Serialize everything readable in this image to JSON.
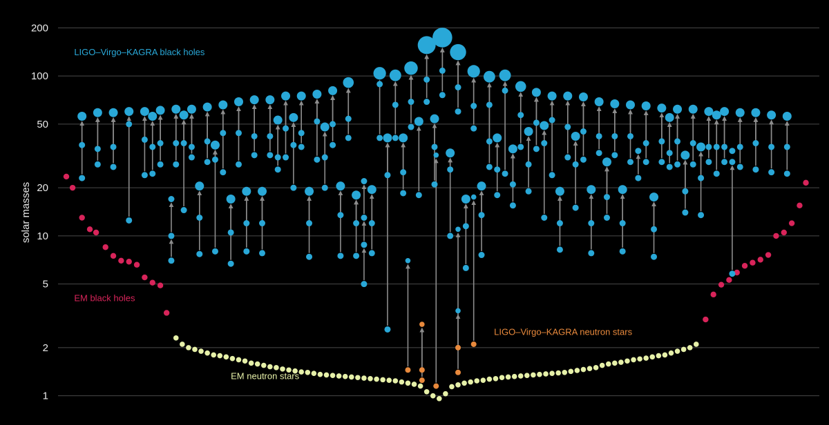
{
  "chart_data": {
    "type": "scatter",
    "title": "",
    "xlabel": "",
    "ylabel": "solar masses",
    "yscale": "log",
    "ylim": [
      0.85,
      260
    ],
    "xlim": [
      0,
      47
    ],
    "y_ticks": [
      1,
      2,
      5,
      10,
      20,
      50,
      100,
      200
    ],
    "y_tick_labels": [
      "1",
      "2",
      "5",
      "10",
      "20",
      "50",
      "100",
      "200"
    ],
    "grid": "horizontal",
    "colors": {
      "ligo_bh": "#29a8d8",
      "ligo_ns": "#e8893c",
      "em_bh": "#d8245a",
      "em_ns": "#e6f0a8",
      "arrow": "#8c8c8c",
      "grid": "#4a4a4a"
    },
    "annotations": [
      {
        "text": "LIGO–Virgo–KAGRA black holes",
        "series": "ligo_bh",
        "at_x": 0.5,
        "at_y": 135
      },
      {
        "text": "EM black holes",
        "series": "em_bh",
        "at_x": 0.5,
        "at_y": 3.9
      },
      {
        "text": "LIGO–Virgo–KAGRA neutron stars",
        "series": "ligo_ns",
        "at_x": 27.3,
        "at_y": 2.4
      },
      {
        "text": "EM neutron stars",
        "series": "em_ns",
        "at_x": 10.5,
        "at_y": 1.27
      }
    ],
    "mergers": [
      {
        "x": 1,
        "p": [
          37,
          23
        ],
        "r": 56,
        "size": 1
      },
      {
        "x": 2,
        "p": [
          35,
          28
        ],
        "r": 59,
        "size": 1
      },
      {
        "x": 3,
        "p": [
          36,
          27
        ],
        "r": 59,
        "size": 1
      },
      {
        "x": 4,
        "p": [
          50,
          12.5
        ],
        "r": 60,
        "size": 1
      },
      {
        "x": 5,
        "p": [
          40,
          24
        ],
        "r": 60,
        "size": 1
      },
      {
        "x": 5.5,
        "p": [
          36,
          24.5
        ],
        "r": 56,
        "size": 1
      },
      {
        "x": 6,
        "p": [
          38,
          28
        ],
        "r": 61,
        "size": 1
      },
      {
        "x": 6.7,
        "p": [
          17,
          10,
          7
        ],
        "r": 0,
        "size": 1
      },
      {
        "x": 7,
        "p": [
          38,
          28
        ],
        "r": 62,
        "size": 1
      },
      {
        "x": 7.5,
        "p": [
          38,
          14.5
        ],
        "r": 57,
        "size": 1
      },
      {
        "x": 8,
        "p": [
          36,
          31
        ],
        "r": 62,
        "size": 1
      },
      {
        "x": 8.5,
        "p": [
          13,
          7.7
        ],
        "r": 20.5,
        "size": 1
      },
      {
        "x": 9,
        "p": [
          39,
          29
        ],
        "r": 64,
        "size": 1
      },
      {
        "x": 9.5,
        "p": [
          30,
          8
        ],
        "r": 37,
        "size": 1
      },
      {
        "x": 10,
        "p": [
          44,
          25
        ],
        "r": 66,
        "size": 1
      },
      {
        "x": 10.5,
        "p": [
          10.5,
          6.7
        ],
        "r": 17,
        "size": 1
      },
      {
        "x": 11,
        "p": [
          44,
          28
        ],
        "r": 69,
        "size": 1
      },
      {
        "x": 11.5,
        "p": [
          12,
          8
        ],
        "r": 19,
        "size": 1
      },
      {
        "x": 12,
        "p": [
          42,
          32
        ],
        "r": 71,
        "size": 1
      },
      {
        "x": 12.5,
        "p": [
          12,
          7.8
        ],
        "r": 19,
        "size": 1
      },
      {
        "x": 13,
        "p": [
          42,
          32
        ],
        "r": 71,
        "size": 1
      },
      {
        "x": 13.5,
        "p": [
          31,
          26
        ],
        "r": 53,
        "size": 1
      },
      {
        "x": 14,
        "p": [
          47,
          31
        ],
        "r": 75,
        "size": 1
      },
      {
        "x": 14.5,
        "p": [
          37,
          20
        ],
        "r": 55,
        "size": 1
      },
      {
        "x": 15,
        "p": [
          44,
          36
        ],
        "r": 75,
        "size": 1
      },
      {
        "x": 15.5,
        "p": [
          12,
          7.4
        ],
        "r": 19,
        "size": 1
      },
      {
        "x": 16,
        "p": [
          52,
          30
        ],
        "r": 77,
        "size": 1
      },
      {
        "x": 16.5,
        "p": [
          31,
          20
        ],
        "r": 48,
        "size": 1
      },
      {
        "x": 17,
        "p": [
          50,
          37
        ],
        "r": 81,
        "size": 1
      },
      {
        "x": 17.5,
        "p": [
          13.5,
          7.5
        ],
        "r": 20.5,
        "size": 1
      },
      {
        "x": 18,
        "p": [
          54,
          41
        ],
        "r": 91,
        "size": 1.2
      },
      {
        "x": 18.5,
        "p": [
          12,
          7.5
        ],
        "r": 18,
        "size": 1
      },
      {
        "x": 19,
        "p": [
          22,
          13,
          8.8,
          5
        ],
        "r": 0,
        "size": 1
      },
      {
        "x": 19.5,
        "p": [
          12,
          7.8
        ],
        "r": 19.5,
        "size": 1
      },
      {
        "x": 20,
        "p": [
          89,
          41
        ],
        "r": 104,
        "size": 1.4
      },
      {
        "x": 20.5,
        "p": [
          24,
          2.6
        ],
        "r": 41,
        "size": 1
      },
      {
        "x": 21,
        "p": [
          66,
          41
        ],
        "r": 101,
        "size": 1.3
      },
      {
        "x": 21.5,
        "p": [
          25,
          18.5
        ],
        "r": 41,
        "size": 1
      },
      {
        "x": 22,
        "p": [
          69,
          48
        ],
        "r": 112,
        "size": 1.5
      },
      {
        "x": 22.5,
        "p": [
          18
        ],
        "r": 52,
        "size": 1
      },
      {
        "x": 23,
        "p": [
          95,
          69
        ],
        "r": 156,
        "size": 2.0
      },
      {
        "x": 23.5,
        "p": [
          36,
          21
        ],
        "r": 54,
        "size": 1
      },
      {
        "x": 24,
        "p": [
          108,
          76
        ],
        "r": 174,
        "size": 2.2
      },
      {
        "x": 24.5,
        "p": [
          26,
          10
        ],
        "r": 33,
        "size": 1
      },
      {
        "x": 25,
        "p": [
          85,
          60
        ],
        "r": 141,
        "size": 1.8
      },
      {
        "x": 25.5,
        "p": [
          11.5,
          6.3
        ],
        "r": 17,
        "size": 1
      },
      {
        "x": 26,
        "p": [
          65,
          47
        ],
        "r": 107,
        "size": 1.4
      },
      {
        "x": 26.5,
        "p": [
          13.5,
          7.6
        ],
        "r": 20.5,
        "size": 1
      },
      {
        "x": 27,
        "p": [
          66,
          39,
          27
        ],
        "r": 99,
        "size": 1.3
      },
      {
        "x": 27.5,
        "p": [
          26,
          18
        ],
        "r": 41,
        "size": 1
      },
      {
        "x": 28,
        "p": [
          81,
          24.5
        ],
        "r": 101,
        "size": 1.3
      },
      {
        "x": 28.5,
        "p": [
          21,
          15.5
        ],
        "r": 35,
        "size": 1
      },
      {
        "x": 29,
        "p": [
          57,
          36
        ],
        "r": 86,
        "size": 1.2
      },
      {
        "x": 29.5,
        "p": [
          28,
          19
        ],
        "r": 45,
        "size": 1
      },
      {
        "x": 30,
        "p": [
          51,
          35
        ],
        "r": 79,
        "size": 1
      },
      {
        "x": 30.5,
        "p": [
          38,
          13
        ],
        "r": 49,
        "size": 1
      },
      {
        "x": 31,
        "p": [
          53,
          24
        ],
        "r": 75,
        "size": 1
      },
      {
        "x": 31.5,
        "p": [
          12,
          8.2
        ],
        "r": 19,
        "size": 1
      },
      {
        "x": 32,
        "p": [
          48,
          31
        ],
        "r": 75,
        "size": 1
      },
      {
        "x": 32.5,
        "p": [
          28,
          15
        ],
        "r": 42,
        "size": 1
      },
      {
        "x": 33,
        "p": [
          45,
          30
        ],
        "r": 74,
        "size": 1
      },
      {
        "x": 33.5,
        "p": [
          12,
          7.8
        ],
        "r": 19.5,
        "size": 1
      },
      {
        "x": 34,
        "p": [
          42,
          33
        ],
        "r": 69,
        "size": 1
      },
      {
        "x": 34.5,
        "p": [
          17.5,
          13
        ],
        "r": 29,
        "size": 1
      },
      {
        "x": 35,
        "p": [
          42,
          32
        ],
        "r": 67,
        "size": 1
      },
      {
        "x": 35.5,
        "p": [
          12,
          8
        ],
        "r": 19.5,
        "size": 1
      },
      {
        "x": 36,
        "p": [
          42,
          29
        ],
        "r": 66,
        "size": 1
      },
      {
        "x": 36.5,
        "p": [
          34,
          23
        ],
        "r": 0,
        "size": 1
      },
      {
        "x": 37,
        "p": [
          38,
          29
        ],
        "r": 65,
        "size": 1
      },
      {
        "x": 37.5,
        "p": [
          11,
          7.4
        ],
        "r": 17.5,
        "size": 1
      },
      {
        "x": 38,
        "p": [
          39,
          29
        ],
        "r": 63,
        "size": 1
      },
      {
        "x": 38.5,
        "p": [
          33,
          27
        ],
        "r": 55,
        "size": 1
      },
      {
        "x": 39,
        "p": [
          39,
          28
        ],
        "r": 62,
        "size": 1
      },
      {
        "x": 39.5,
        "p": [
          19,
          14
        ],
        "r": 32,
        "size": 1
      },
      {
        "x": 40,
        "p": [
          38,
          28
        ],
        "r": 62,
        "size": 1
      },
      {
        "x": 40.5,
        "p": [
          23,
          13.5
        ],
        "r": 36,
        "size": 1
      },
      {
        "x": 41,
        "p": [
          36,
          29
        ],
        "r": 60,
        "size": 1
      },
      {
        "x": 41.5,
        "p": [
          36,
          24.5
        ],
        "r": 57,
        "size": 1
      },
      {
        "x": 42,
        "p": [
          36,
          29
        ],
        "r": 60,
        "size": 1
      },
      {
        "x": 42.5,
        "p": [
          34,
          29,
          5.8
        ],
        "r": 0,
        "size": 1
      },
      {
        "x": 43,
        "p": [
          36,
          27
        ],
        "r": 59,
        "size": 1
      },
      {
        "x": 44,
        "p": [
          38,
          26
        ],
        "r": 59,
        "size": 1
      },
      {
        "x": 45,
        "p": [
          36,
          25
        ],
        "r": 57,
        "size": 1
      },
      {
        "x": 46,
        "p": [
          36,
          24.5
        ],
        "r": 56,
        "size": 1
      }
    ],
    "ligo_ns_mergers": [
      {
        "x": 21.8,
        "p": [
          1.45
        ],
        "r": 7
      },
      {
        "x": 22.7,
        "p": [
          1.45,
          1.25
        ],
        "r": 2.8
      },
      {
        "x": 23.6,
        "p": [
          1.15
        ],
        "r": 32
      },
      {
        "x": 25.0,
        "p": [
          1.4
        ],
        "r": 3.4
      },
      {
        "x": 25.0,
        "p": [
          2.0
        ],
        "r": 11
      },
      {
        "x": 26.0,
        "p": [
          2.1
        ],
        "r": 17.5
      }
    ],
    "em_black_holes": [
      {
        "x": 0.0,
        "y": 23.5
      },
      {
        "x": 0.4,
        "y": 20
      },
      {
        "x": 1.0,
        "y": 13
      },
      {
        "x": 1.5,
        "y": 11
      },
      {
        "x": 1.9,
        "y": 10.5
      },
      {
        "x": 2.5,
        "y": 8.5
      },
      {
        "x": 3.0,
        "y": 7.5
      },
      {
        "x": 3.5,
        "y": 7
      },
      {
        "x": 4.0,
        "y": 6.9
      },
      {
        "x": 4.5,
        "y": 6.6
      },
      {
        "x": 5.0,
        "y": 5.5
      },
      {
        "x": 5.5,
        "y": 5.1
      },
      {
        "x": 6.0,
        "y": 4.9
      },
      {
        "x": 6.4,
        "y": 3.3
      },
      {
        "x": 40.8,
        "y": 3.0
      },
      {
        "x": 41.3,
        "y": 4.3
      },
      {
        "x": 41.8,
        "y": 4.95
      },
      {
        "x": 42.3,
        "y": 5.3
      },
      {
        "x": 42.8,
        "y": 5.9
      },
      {
        "x": 43.3,
        "y": 6.5
      },
      {
        "x": 43.8,
        "y": 6.8
      },
      {
        "x": 44.3,
        "y": 7.1
      },
      {
        "x": 44.8,
        "y": 7.6
      },
      {
        "x": 45.3,
        "y": 10
      },
      {
        "x": 45.8,
        "y": 10.5
      },
      {
        "x": 46.3,
        "y": 12
      },
      {
        "x": 46.8,
        "y": 15.5
      },
      {
        "x": 47.2,
        "y": 21.5
      }
    ],
    "em_neutron_stars": [
      {
        "x": 7.0,
        "y": 2.3
      },
      {
        "x": 7.4,
        "y": 2.1
      },
      {
        "x": 7.8,
        "y": 2.0
      },
      {
        "x": 8.2,
        "y": 1.95
      },
      {
        "x": 8.6,
        "y": 1.9
      },
      {
        "x": 9.0,
        "y": 1.85
      },
      {
        "x": 9.4,
        "y": 1.8
      },
      {
        "x": 9.8,
        "y": 1.78
      },
      {
        "x": 10.2,
        "y": 1.75
      },
      {
        "x": 10.6,
        "y": 1.71
      },
      {
        "x": 11.0,
        "y": 1.68
      },
      {
        "x": 11.4,
        "y": 1.65
      },
      {
        "x": 11.8,
        "y": 1.6
      },
      {
        "x": 12.2,
        "y": 1.58
      },
      {
        "x": 12.6,
        "y": 1.55
      },
      {
        "x": 13.0,
        "y": 1.52
      },
      {
        "x": 13.4,
        "y": 1.5
      },
      {
        "x": 13.8,
        "y": 1.47
      },
      {
        "x": 14.2,
        "y": 1.45
      },
      {
        "x": 14.6,
        "y": 1.43
      },
      {
        "x": 15.0,
        "y": 1.41
      },
      {
        "x": 15.4,
        "y": 1.4
      },
      {
        "x": 15.8,
        "y": 1.38
      },
      {
        "x": 16.2,
        "y": 1.36
      },
      {
        "x": 16.6,
        "y": 1.35
      },
      {
        "x": 17.0,
        "y": 1.34
      },
      {
        "x": 17.4,
        "y": 1.33
      },
      {
        "x": 17.8,
        "y": 1.32
      },
      {
        "x": 18.2,
        "y": 1.31
      },
      {
        "x": 18.6,
        "y": 1.3
      },
      {
        "x": 19.0,
        "y": 1.29
      },
      {
        "x": 19.4,
        "y": 1.28
      },
      {
        "x": 19.8,
        "y": 1.27
      },
      {
        "x": 20.2,
        "y": 1.26
      },
      {
        "x": 20.6,
        "y": 1.25
      },
      {
        "x": 21.0,
        "y": 1.24
      },
      {
        "x": 21.4,
        "y": 1.22
      },
      {
        "x": 21.8,
        "y": 1.2
      },
      {
        "x": 22.2,
        "y": 1.18
      },
      {
        "x": 22.6,
        "y": 1.15
      },
      {
        "x": 23.0,
        "y": 1.06
      },
      {
        "x": 23.4,
        "y": 1.0
      },
      {
        "x": 23.8,
        "y": 0.96
      },
      {
        "x": 24.2,
        "y": 1.03
      },
      {
        "x": 24.6,
        "y": 1.14
      },
      {
        "x": 25.0,
        "y": 1.17
      },
      {
        "x": 25.4,
        "y": 1.2
      },
      {
        "x": 25.8,
        "y": 1.22
      },
      {
        "x": 26.2,
        "y": 1.24
      },
      {
        "x": 26.6,
        "y": 1.25
      },
      {
        "x": 27.0,
        "y": 1.27
      },
      {
        "x": 27.4,
        "y": 1.28
      },
      {
        "x": 27.8,
        "y": 1.3
      },
      {
        "x": 28.2,
        "y": 1.31
      },
      {
        "x": 28.6,
        "y": 1.32
      },
      {
        "x": 29.0,
        "y": 1.33
      },
      {
        "x": 29.4,
        "y": 1.34
      },
      {
        "x": 29.8,
        "y": 1.35
      },
      {
        "x": 30.2,
        "y": 1.36
      },
      {
        "x": 30.6,
        "y": 1.37
      },
      {
        "x": 31.0,
        "y": 1.38
      },
      {
        "x": 31.4,
        "y": 1.39
      },
      {
        "x": 31.8,
        "y": 1.4
      },
      {
        "x": 32.2,
        "y": 1.42
      },
      {
        "x": 32.6,
        "y": 1.44
      },
      {
        "x": 33.0,
        "y": 1.46
      },
      {
        "x": 33.4,
        "y": 1.48
      },
      {
        "x": 33.8,
        "y": 1.5
      },
      {
        "x": 34.2,
        "y": 1.55
      },
      {
        "x": 34.6,
        "y": 1.58
      },
      {
        "x": 35.0,
        "y": 1.6
      },
      {
        "x": 35.4,
        "y": 1.62
      },
      {
        "x": 35.8,
        "y": 1.65
      },
      {
        "x": 36.2,
        "y": 1.68
      },
      {
        "x": 36.6,
        "y": 1.7
      },
      {
        "x": 37.0,
        "y": 1.72
      },
      {
        "x": 37.4,
        "y": 1.75
      },
      {
        "x": 37.8,
        "y": 1.78
      },
      {
        "x": 38.2,
        "y": 1.8
      },
      {
        "x": 38.6,
        "y": 1.85
      },
      {
        "x": 39.0,
        "y": 1.9
      },
      {
        "x": 39.4,
        "y": 1.95
      },
      {
        "x": 39.8,
        "y": 2.0
      },
      {
        "x": 40.2,
        "y": 2.1
      }
    ]
  }
}
